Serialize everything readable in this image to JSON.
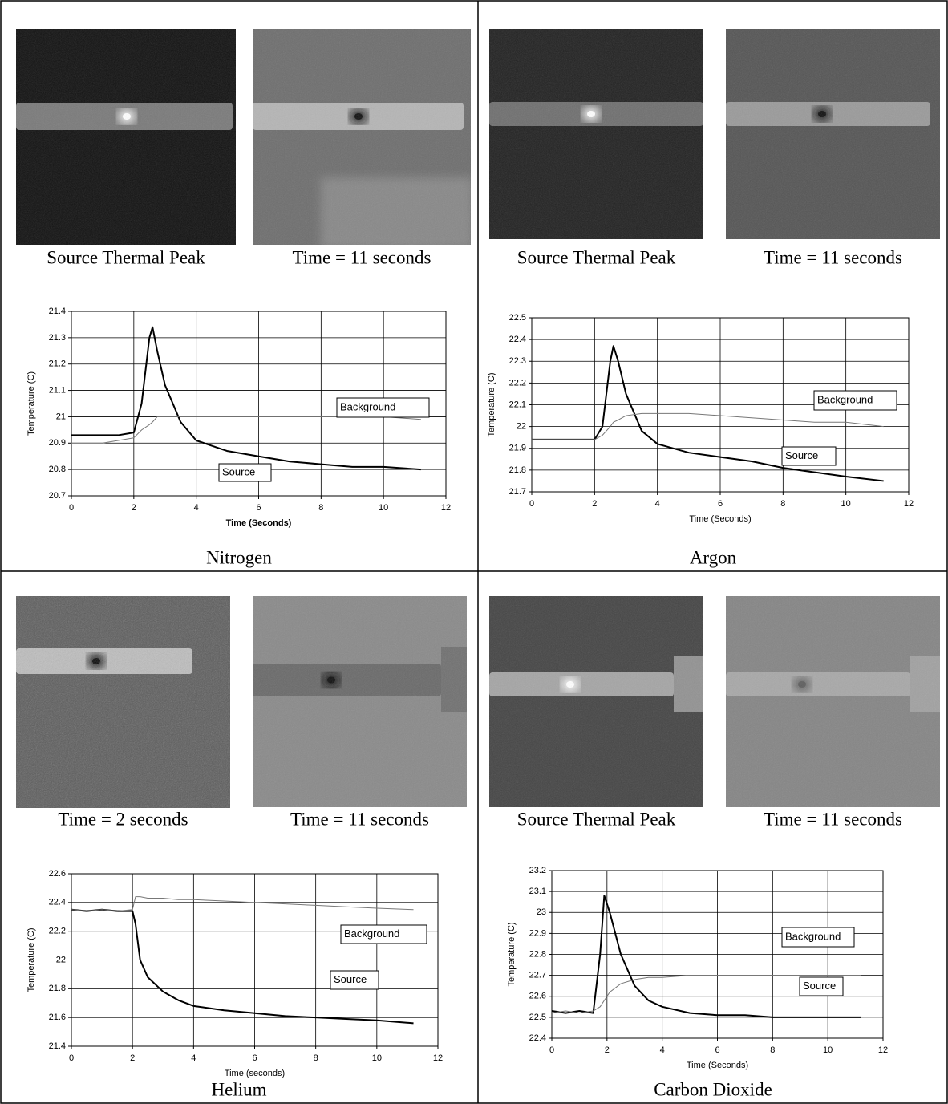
{
  "panels": [
    {
      "captions": [
        "Source Thermal Peak",
        "Time = 11 seconds"
      ],
      "label": "Nitrogen"
    },
    {
      "captions": [
        "Source Thermal Peak",
        "Time = 11 seconds"
      ],
      "label": "Argon"
    },
    {
      "captions": [
        "Time = 2 seconds",
        "Time = 11 seconds"
      ],
      "label": "Helium"
    },
    {
      "captions": [
        "Source Thermal Peak",
        "Time = 11 seconds"
      ],
      "label": "Carbon Dioxide"
    }
  ],
  "chart_data": [
    {
      "type": "line",
      "xlabel": "Time (Seconds)",
      "ylabel": "Temperature (C)",
      "grid": true,
      "xlim": [
        0,
        12
      ],
      "xticks": [
        0,
        2,
        4,
        6,
        8,
        10,
        12
      ],
      "ylim": [
        20.7,
        21.4
      ],
      "yticks": [
        20.7,
        20.8,
        20.9,
        21,
        21.1,
        21.2,
        21.3,
        21.4
      ],
      "x": [
        0,
        0.5,
        1,
        1.5,
        2,
        2.25,
        2.5,
        2.6,
        2.75,
        3,
        3.5,
        4,
        5,
        6,
        7,
        8,
        9,
        10,
        11.2
      ],
      "series": [
        {
          "name": "Source",
          "color": "#000000",
          "values": [
            20.93,
            20.93,
            20.93,
            20.93,
            20.94,
            21.05,
            21.3,
            21.34,
            21.25,
            21.12,
            20.98,
            20.91,
            20.87,
            20.85,
            20.83,
            20.82,
            20.81,
            20.81,
            20.8
          ]
        },
        {
          "name": "Background",
          "color": "#777777",
          "values": [
            20.9,
            20.9,
            20.9,
            20.91,
            20.92,
            20.95,
            20.97,
            20.98,
            21.0,
            21.0,
            21.0,
            21.0,
            21.0,
            21.0,
            21.0,
            21.0,
            21.0,
            21.0,
            20.99
          ]
        }
      ]
    },
    {
      "type": "line",
      "xlabel": "Time (Seconds)",
      "ylabel": "Temperature (C)",
      "grid": true,
      "xlim": [
        0,
        12
      ],
      "xticks": [
        0,
        2,
        4,
        6,
        8,
        10,
        12
      ],
      "ylim": [
        21.7,
        22.5
      ],
      "yticks": [
        21.7,
        21.8,
        21.9,
        22,
        22.1,
        22.2,
        22.3,
        22.4,
        22.5
      ],
      "x": [
        0,
        0.5,
        1,
        1.5,
        2,
        2.25,
        2.5,
        2.6,
        2.75,
        3,
        3.5,
        4,
        5,
        6,
        7,
        8,
        9,
        10,
        11.2
      ],
      "series": [
        {
          "name": "Source",
          "color": "#000000",
          "values": [
            21.94,
            21.94,
            21.94,
            21.94,
            21.94,
            22.0,
            22.3,
            22.37,
            22.3,
            22.15,
            21.98,
            21.92,
            21.88,
            21.86,
            21.84,
            21.81,
            21.79,
            21.77,
            21.75
          ]
        },
        {
          "name": "Background",
          "color": "#777777",
          "values": [
            21.94,
            21.94,
            21.94,
            21.94,
            21.94,
            21.96,
            22.0,
            22.02,
            22.03,
            22.05,
            22.06,
            22.06,
            22.06,
            22.05,
            22.04,
            22.03,
            22.02,
            22.02,
            22.0
          ]
        }
      ]
    },
    {
      "type": "line",
      "xlabel": "Time (seconds)",
      "ylabel": "Temperature (C)",
      "grid": true,
      "xlim": [
        0,
        12
      ],
      "xticks": [
        0,
        2,
        4,
        6,
        8,
        10,
        12
      ],
      "ylim": [
        21.4,
        22.6
      ],
      "yticks": [
        21.4,
        21.6,
        21.8,
        22,
        22.2,
        22.4,
        22.6
      ],
      "x": [
        0,
        0.5,
        1,
        1.5,
        2,
        2.1,
        2.25,
        2.5,
        3,
        3.5,
        4,
        5,
        6,
        7,
        8,
        9,
        10,
        11.2
      ],
      "series": [
        {
          "name": "Source",
          "color": "#000000",
          "values": [
            22.35,
            22.34,
            22.35,
            22.34,
            22.34,
            22.25,
            22.0,
            21.88,
            21.78,
            21.72,
            21.68,
            21.65,
            21.63,
            21.61,
            21.6,
            21.59,
            21.58,
            21.56
          ]
        },
        {
          "name": "Background",
          "color": "#777777",
          "values": [
            22.35,
            22.34,
            22.35,
            22.34,
            22.35,
            22.44,
            22.44,
            22.43,
            22.43,
            22.42,
            22.42,
            22.41,
            22.4,
            22.39,
            22.38,
            22.37,
            22.36,
            22.35
          ]
        }
      ]
    },
    {
      "type": "line",
      "xlabel": "Time (Seconds)",
      "ylabel": "Temperature (C)",
      "grid": true,
      "xlim": [
        0,
        12
      ],
      "xticks": [
        0,
        2,
        4,
        6,
        8,
        10,
        12
      ],
      "ylim": [
        22.4,
        23.2
      ],
      "yticks": [
        22.4,
        22.5,
        22.6,
        22.7,
        22.8,
        22.9,
        23,
        23.1,
        23.2
      ],
      "x": [
        0,
        0.5,
        1,
        1.5,
        1.75,
        1.9,
        2.1,
        2.5,
        3,
        3.5,
        4,
        5,
        6,
        7,
        8,
        9,
        10,
        11.2
      ],
      "series": [
        {
          "name": "Source",
          "color": "#000000",
          "values": [
            22.53,
            22.52,
            22.53,
            22.52,
            22.8,
            23.08,
            23.0,
            22.8,
            22.65,
            22.58,
            22.55,
            22.52,
            22.51,
            22.51,
            22.5,
            22.5,
            22.5,
            22.5
          ]
        },
        {
          "name": "Background",
          "color": "#777777",
          "values": [
            22.52,
            22.53,
            22.52,
            22.53,
            22.55,
            22.58,
            22.62,
            22.66,
            22.68,
            22.69,
            22.69,
            22.7,
            22.7,
            22.7,
            22.7,
            22.7,
            22.7,
            22.7
          ]
        }
      ]
    }
  ]
}
